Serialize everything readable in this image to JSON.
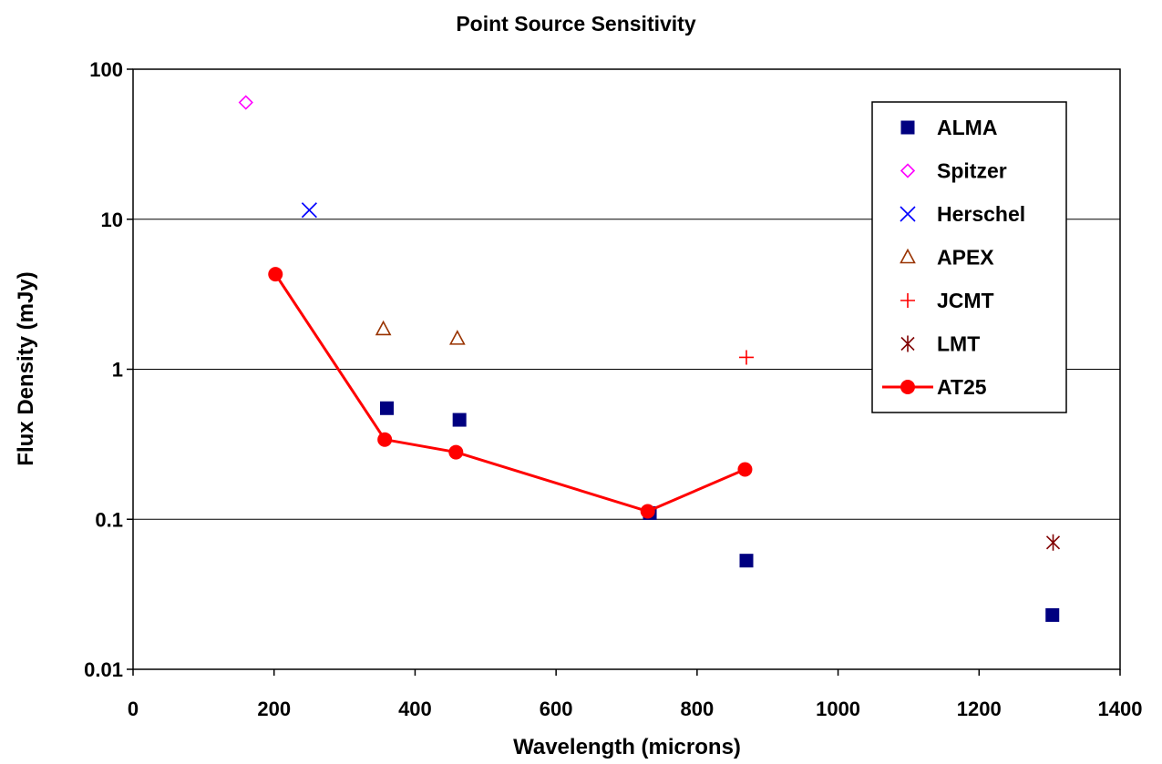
{
  "chart_data": {
    "type": "scatter",
    "title": "Point Source Sensitivity",
    "xlabel": "Wavelength (microns)",
    "ylabel": "Flux Density (mJy)",
    "xlim": [
      0,
      1400
    ],
    "ylim": [
      0.01,
      100
    ],
    "yscale": "log",
    "x_ticks": [
      0,
      200,
      400,
      600,
      800,
      1000,
      1200,
      1400
    ],
    "y_ticks": [
      0.01,
      0.1,
      1,
      10,
      100
    ],
    "y_tick_labels": [
      "0.01",
      "0.1",
      "1",
      "10",
      "100"
    ],
    "grid": "horizontal",
    "legend_position": "top-right",
    "series": [
      {
        "name": "ALMA",
        "marker": "square",
        "color": "#000080",
        "line": false,
        "points": [
          [
            360,
            0.55
          ],
          [
            463,
            0.46
          ],
          [
            733,
            0.11
          ],
          [
            870,
            0.053
          ],
          [
            1304,
            0.023
          ]
        ]
      },
      {
        "name": "Spitzer",
        "marker": "diamond",
        "color": "#ff00ff",
        "line": false,
        "points": [
          [
            160,
            60
          ]
        ]
      },
      {
        "name": "Herschel",
        "marker": "x",
        "color": "#0000ff",
        "line": false,
        "points": [
          [
            250,
            11.5
          ]
        ]
      },
      {
        "name": "APEX",
        "marker": "triangle",
        "color": "#993300",
        "line": false,
        "points": [
          [
            355,
            1.85
          ],
          [
            460,
            1.6
          ]
        ]
      },
      {
        "name": "JCMT",
        "marker": "plus",
        "color": "#ff0000",
        "line": false,
        "points": [
          [
            870,
            1.2
          ]
        ]
      },
      {
        "name": "LMT",
        "marker": "star",
        "color": "#800000",
        "line": false,
        "points": [
          [
            1305,
            0.07
          ]
        ]
      },
      {
        "name": "AT25",
        "marker": "circle",
        "color": "#ff0000",
        "line": true,
        "points": [
          [
            202,
            4.3
          ],
          [
            357,
            0.34
          ],
          [
            458,
            0.28
          ],
          [
            730,
            0.113
          ],
          [
            868,
            0.215
          ]
        ]
      }
    ]
  }
}
